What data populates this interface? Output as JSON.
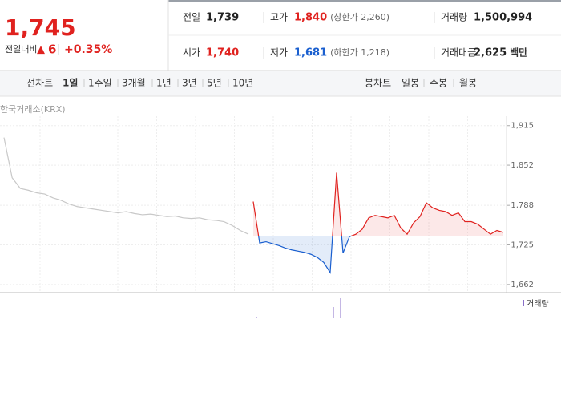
{
  "quote": {
    "price": "1,745",
    "change_label": "전일대비",
    "change_arrow": "▲",
    "change": "6",
    "change_rate": "+0.35%"
  },
  "stats": [
    {
      "label": "전일",
      "value": "1,739"
    },
    {
      "label": "고가",
      "value": "1,840",
      "note": "(상한가 2,260)"
    },
    {
      "label": "거래량",
      "value": "1,500,994"
    },
    {
      "label": "시가",
      "value": "1,740"
    },
    {
      "label": "저가",
      "value": "1,681",
      "note": "(하한가 1,218)"
    },
    {
      "label": "거래대금",
      "value": "2,625",
      "unit": "백만"
    }
  ],
  "tabs": {
    "line_label": "선차트",
    "line": [
      "1일",
      "1주일",
      "3개월",
      "1년",
      "3년",
      "5년",
      "10년"
    ],
    "candle_label": "봉차트",
    "candle": [
      "일봉",
      "주봉",
      "월봉"
    ]
  },
  "chart": {
    "type": "line",
    "source": "한국거래소(KRX)",
    "ylim": [
      1649,
      1930
    ],
    "yticks": [
      {
        "value": 1915,
        "label": "1,915"
      },
      {
        "value": 1852,
        "label": "1,852"
      },
      {
        "value": 1788,
        "label": "1,788"
      },
      {
        "value": 1725,
        "label": "1,725"
      },
      {
        "value": 1662,
        "label": "1,662"
      }
    ],
    "baseline": 1739,
    "series": [
      {
        "color": "#c8c8c8",
        "values": [
          1896,
          1832,
          1815,
          1812,
          1808,
          1806,
          1800,
          1796,
          1790,
          1786,
          1784,
          1782,
          1780,
          1778,
          1776,
          1778,
          1775,
          1773,
          1774,
          1772,
          1770,
          1771,
          1768,
          1767,
          1768,
          1765,
          1764,
          1762,
          1756,
          1748,
          1742
        ]
      },
      {
        "color": "#e0221f",
        "below_color": "#1a5fcf",
        "values": [
          1794,
          1728,
          1730,
          1727,
          1724,
          1720,
          1717,
          1715,
          1713,
          1710,
          1705,
          1697,
          1681,
          1840,
          1712,
          1738,
          1742,
          1750,
          1768,
          1772,
          1770,
          1768,
          1772,
          1752,
          1742,
          1760,
          1770,
          1792,
          1784,
          1780,
          1778,
          1772,
          1776,
          1762,
          1762,
          1758,
          1750,
          1742,
          1748,
          1745
        ]
      }
    ],
    "volume_legend": "거래량"
  }
}
